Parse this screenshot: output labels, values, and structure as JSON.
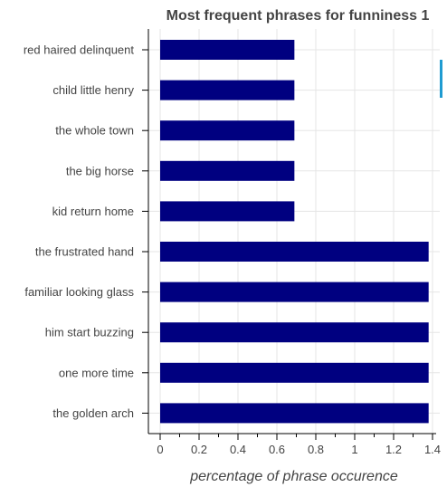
{
  "chart_data": {
    "type": "bar",
    "orientation": "horizontal",
    "title": "Most frequent phrases for funniness 1",
    "xlabel": "percentage of phrase occurence",
    "ylabel": "",
    "categories": [
      "red haired delinquent",
      "child little henry",
      "the whole town",
      "the big horse",
      "kid return home",
      "the frustrated hand",
      "familiar looking glass",
      "him start buzzing",
      "one more time",
      "the golden arch"
    ],
    "values": [
      0.69,
      0.69,
      0.69,
      0.69,
      0.69,
      1.38,
      1.38,
      1.38,
      1.38,
      1.38
    ],
    "xlim": [
      -0.07,
      1.42
    ],
    "xticks": [
      0,
      0.2,
      0.4,
      0.6,
      0.8,
      1,
      1.2,
      1.4
    ],
    "xtick_labels": [
      "0",
      "0.2",
      "0.4",
      "0.6",
      "0.8",
      "1",
      "1.2",
      "1.4"
    ],
    "grid": true,
    "bar_color": "#000080",
    "accent_color": "#1f9bd1"
  }
}
